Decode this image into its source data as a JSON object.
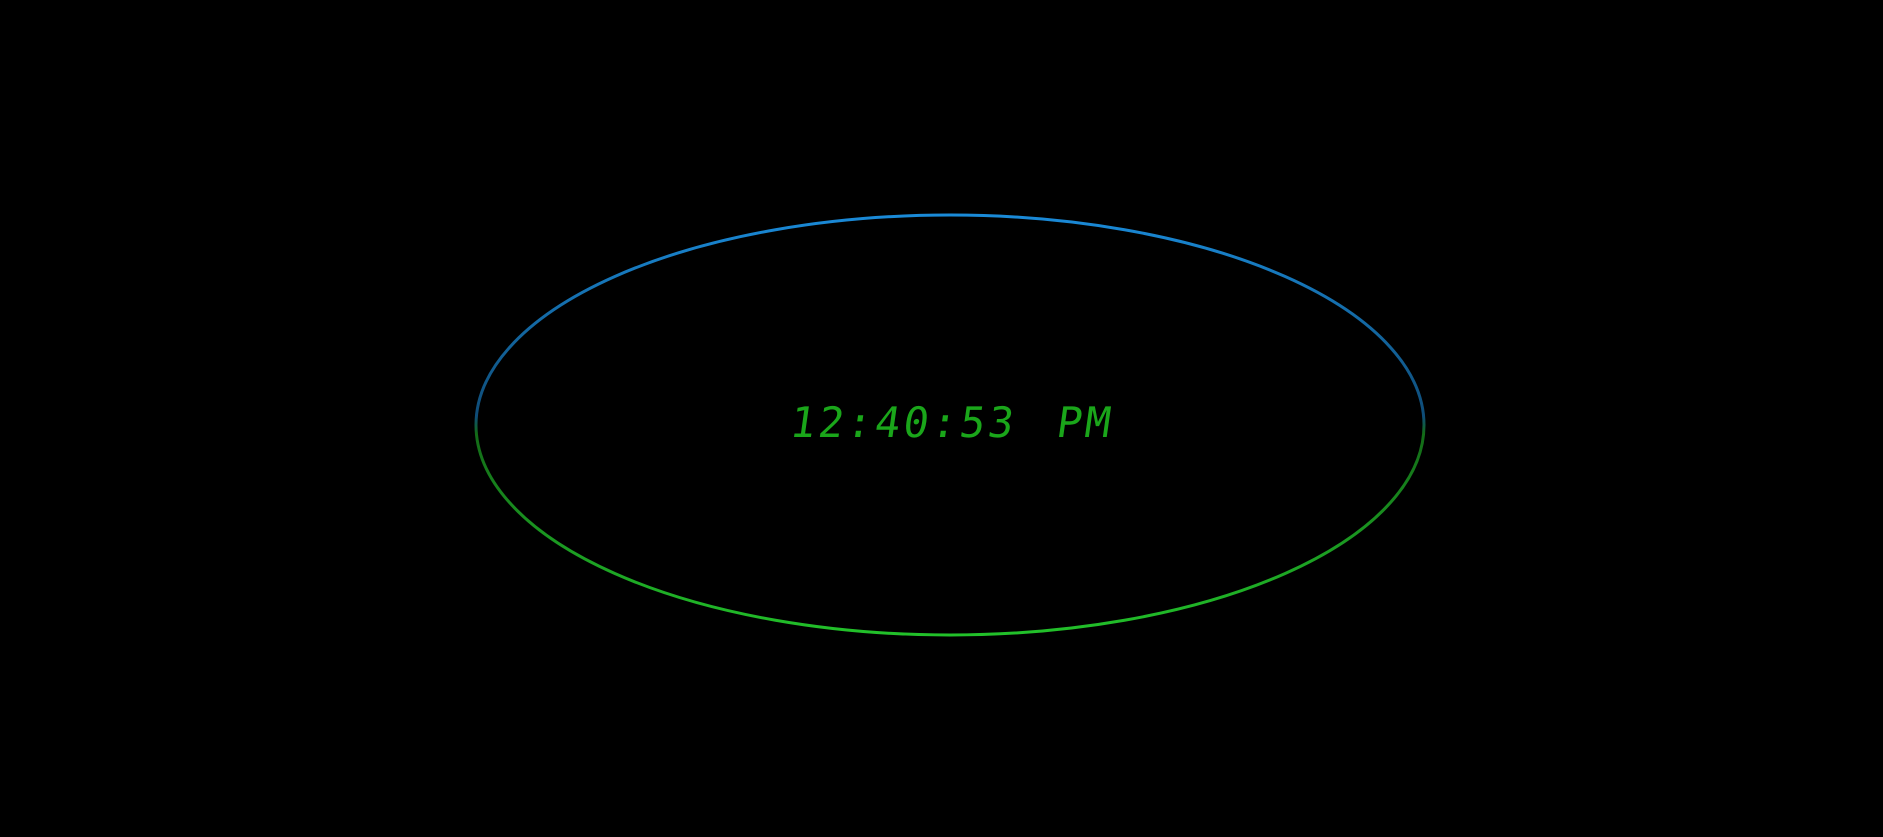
{
  "clock": {
    "time": "12:40:53",
    "meridiem": "PM",
    "colors": {
      "background": "#000000",
      "digits": "#1aa61a",
      "ring_top": "#1a8ad8",
      "ring_bottom": "#22c12a"
    }
  }
}
